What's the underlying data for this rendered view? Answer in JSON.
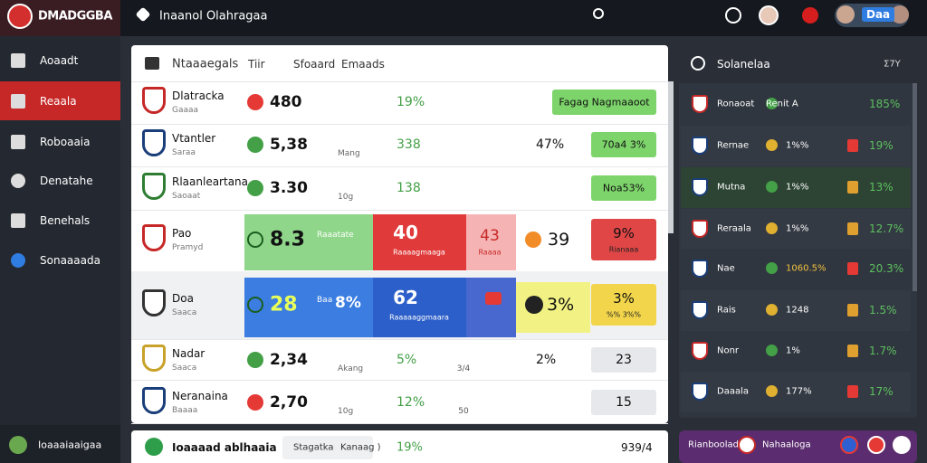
{
  "header": {
    "logo": "DMADGGBA",
    "title": "Inaanol Olahragaa",
    "user": "Daa"
  },
  "sidebar": {
    "items": [
      "Aoaadt",
      "Reaala",
      "Roboaaia",
      "Denatahe",
      "Benehals",
      "Sonaaaada"
    ],
    "footer": "Ioaaaiaaigaa"
  },
  "main": {
    "columns": [
      "Ntaaaegals",
      "Tiir",
      "Sfoaard",
      "Emaads"
    ],
    "rows": [
      {
        "name": "Dlatracka",
        "sub": "Gaaaa",
        "odds": "480",
        "pct": "19%",
        "action": "Fagag Nagmaaoot"
      },
      {
        "name": "Vtantler",
        "sub": "Saraa",
        "odds": "5,38",
        "note": "Mang",
        "pct": "338",
        "share": "47%",
        "action": "70a4 3%"
      },
      {
        "name": "Rlaanleartana",
        "sub": "Saoaat",
        "odds": "3.30",
        "note": "10g",
        "pct": "138",
        "action": "Noa53%"
      },
      {
        "name": "Pao",
        "sub": "Pramyd",
        "odds": "8.3",
        "note": "Raaatate",
        "home": "40",
        "home_label": "Raaaagmaaga",
        "draw": "43",
        "draw_label": "Raaaa",
        "share": "39",
        "action": "9%",
        "action_label": "Rianaaa"
      },
      {
        "name": "Doa",
        "sub": "Saaca",
        "odds": "28",
        "note": "Baa",
        "pct": "8%",
        "home": "62",
        "home_label": "Raaaaaggmaara",
        "share": "3%",
        "action": "3%",
        "action_label": "%% 3%%"
      },
      {
        "name": "Nadar",
        "sub": "Saaca",
        "odds": "2,34",
        "note": "Akang",
        "pct": "5%",
        "draw": "3/4",
        "share": "2%",
        "action": "23"
      },
      {
        "name": "Neranaina",
        "sub": "Baaaa",
        "odds": "2,70",
        "note": "10g",
        "pct": "12%",
        "draw": "50",
        "action": "15"
      }
    ]
  },
  "footer": {
    "title": "Ioaaaad ablhaaia",
    "tab": "Stagatka",
    "label": "Kanaag )",
    "pct": "19%",
    "total": "939/4"
  },
  "panel": {
    "title": "Solanelaa",
    "tag": "Σ7Y",
    "rows": [
      {
        "name": "Ronaoat",
        "value": "Renit A",
        "pct": "185%"
      },
      {
        "name": "Rernae",
        "value": "1%%",
        "pct": "19%"
      },
      {
        "name": "Mutna",
        "value": "1%%",
        "pct": "13%"
      },
      {
        "name": "Reraala",
        "value": "1%%",
        "pct": "12.7%"
      },
      {
        "name": "Nae",
        "value": "1060.5%",
        "pct": "20.3%"
      },
      {
        "name": "Rais",
        "value": "1248",
        "pct": "1.5%"
      },
      {
        "name": "Nonr",
        "value": "1%",
        "pct": "1.7%"
      },
      {
        "name": "Daaala",
        "value": "177%",
        "pct": "17%"
      }
    ],
    "footer": [
      "Rianbooladt",
      "Nahaaloga"
    ]
  }
}
